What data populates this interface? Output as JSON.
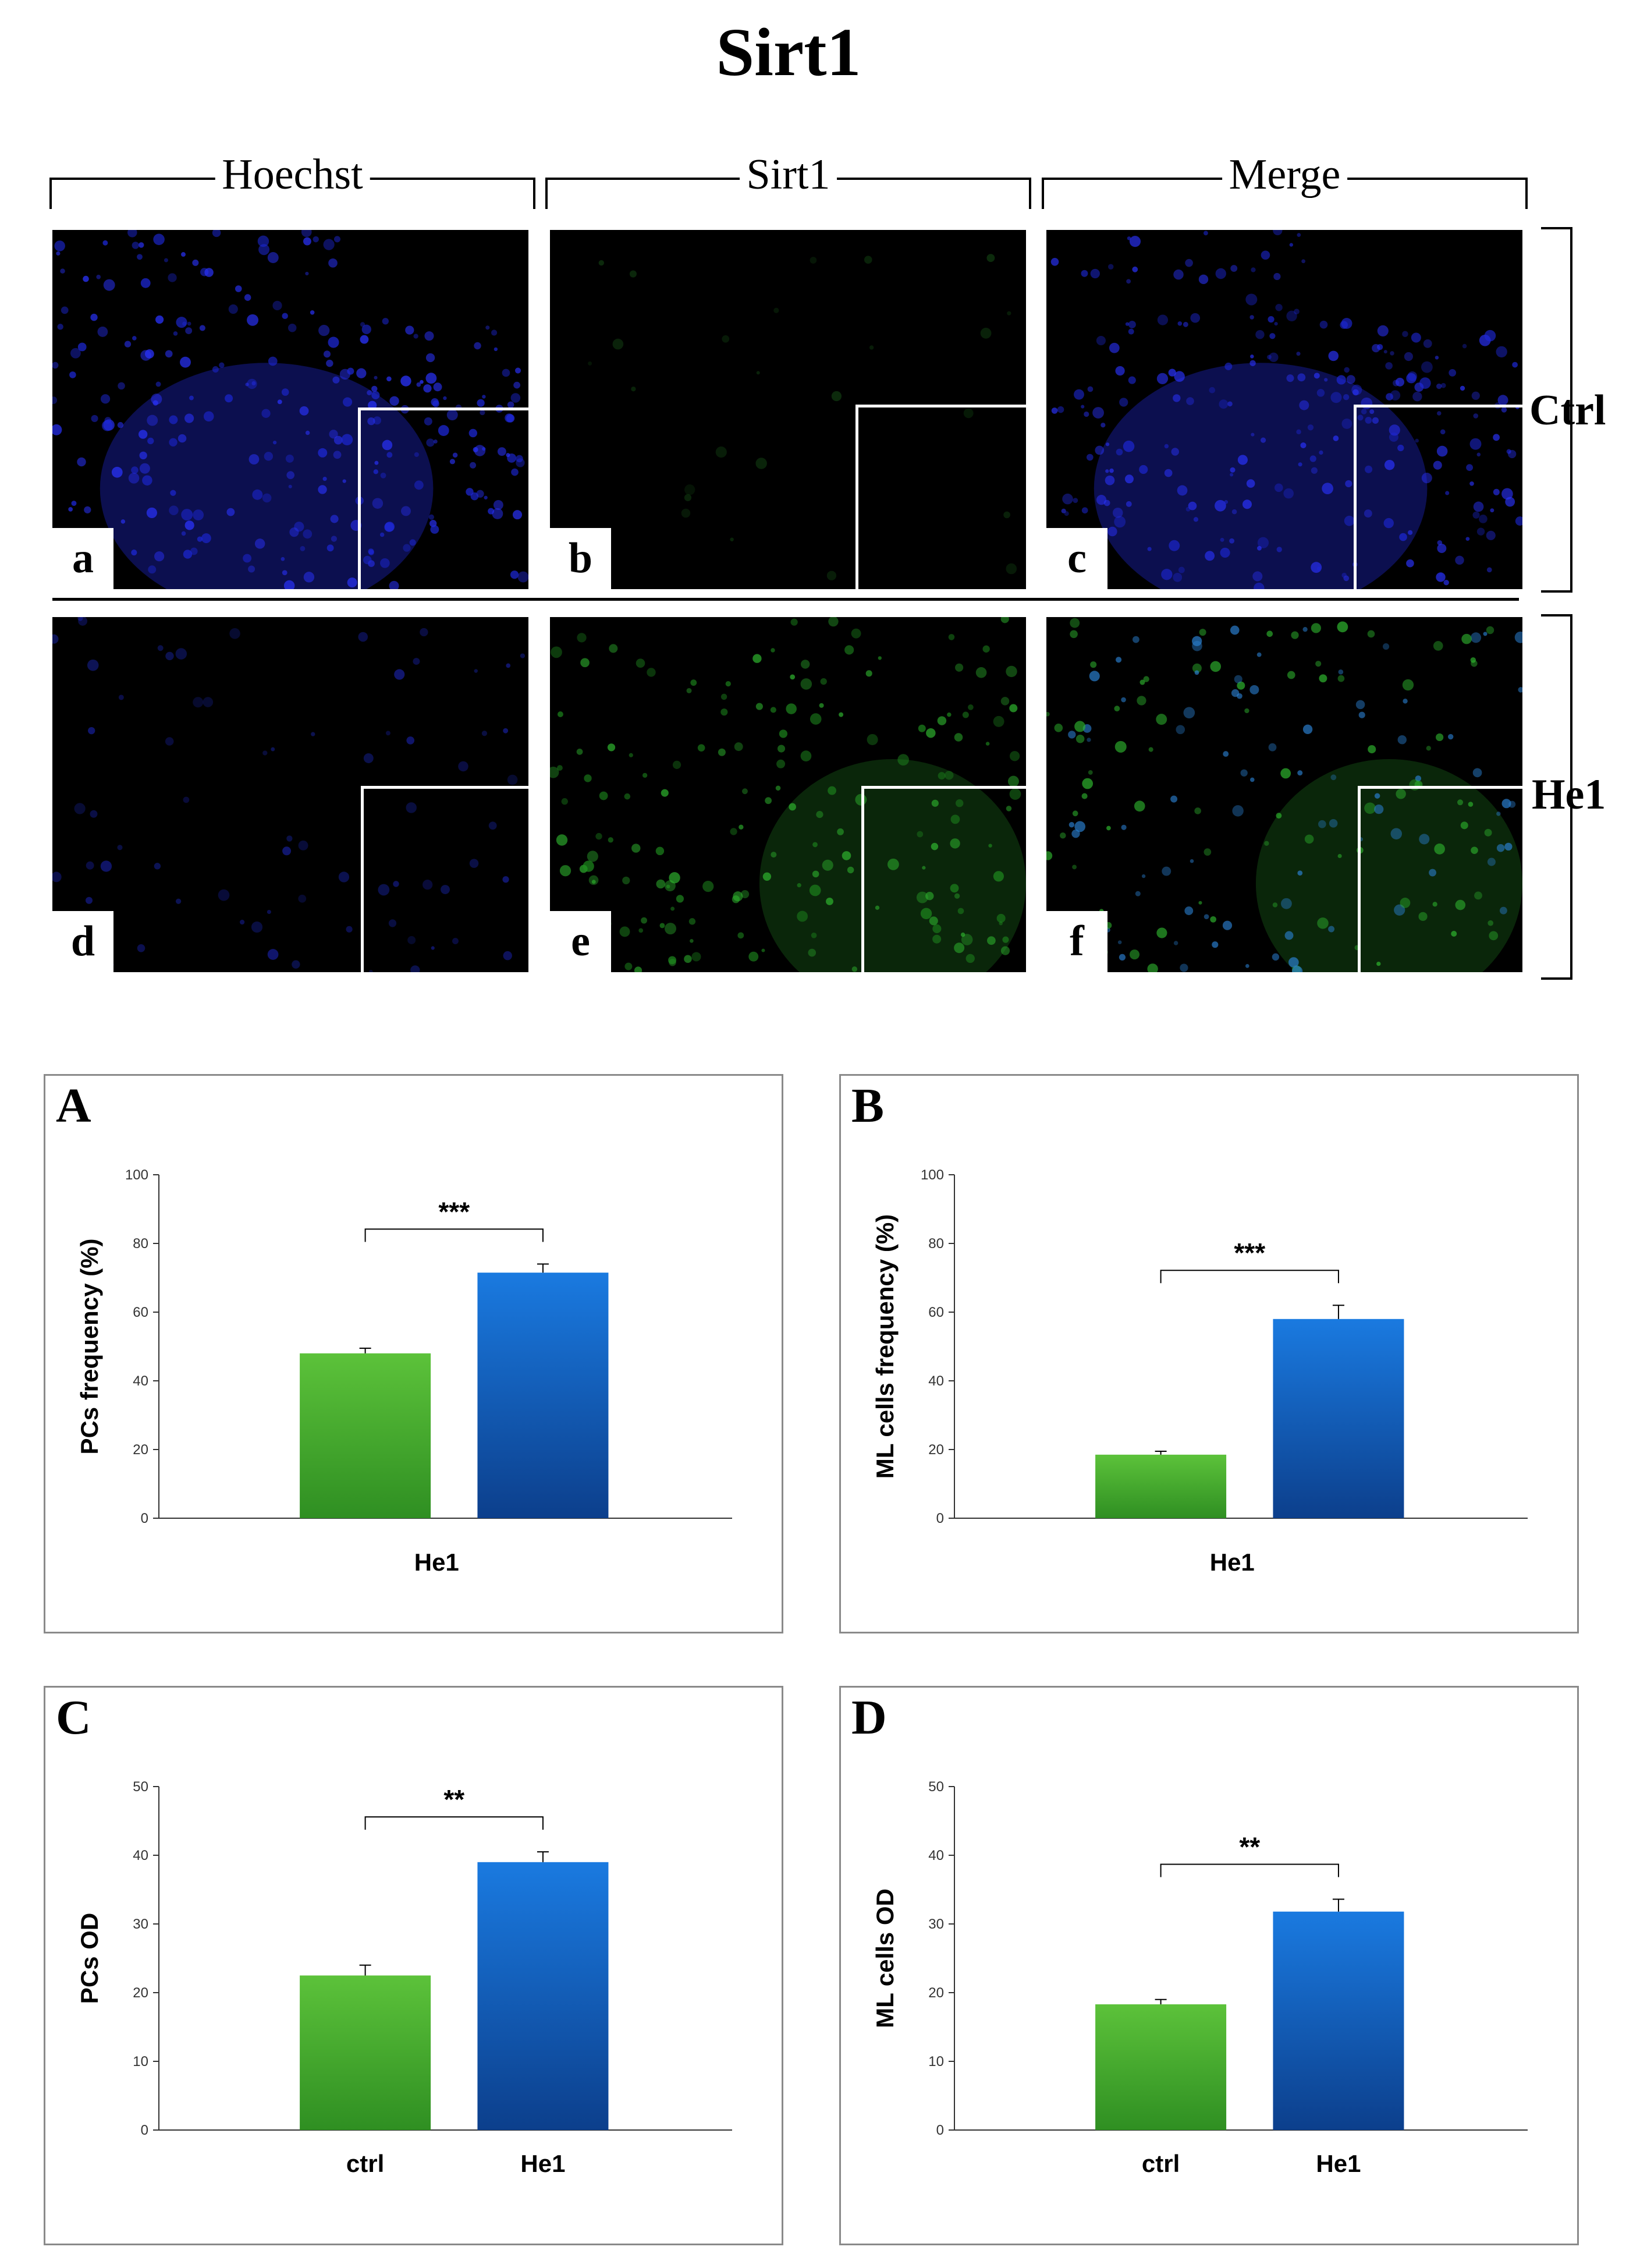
{
  "figure_title": "Sirt1",
  "columns": [
    "Hoechst",
    "Sirt1",
    "Merge"
  ],
  "rows": [
    "Ctrl",
    "He1"
  ],
  "micrographs": [
    {
      "label": "a",
      "channel": "blue"
    },
    {
      "label": "b",
      "channel": "green-faint"
    },
    {
      "label": "c",
      "channel": "merge-ctrl"
    },
    {
      "label": "d",
      "channel": "blue-faint"
    },
    {
      "label": "e",
      "channel": "green"
    },
    {
      "label": "f",
      "channel": "merge-he1"
    }
  ],
  "colors": {
    "ctrl_bar": "#43a82c",
    "he1_bar": "#1466c8",
    "frame": "#8a8a8a"
  },
  "chart_data": [
    {
      "panel": "A",
      "type": "bar",
      "categories": [
        "",
        ""
      ],
      "xlabel": "He1",
      "ylabel": "PCs frequency (%)",
      "ylim": [
        0,
        100
      ],
      "ticks": [
        0,
        20,
        40,
        60,
        80,
        100
      ],
      "values": [
        48,
        71.5
      ],
      "errors": [
        1.5,
        2.5
      ],
      "significance": "***"
    },
    {
      "panel": "B",
      "type": "bar",
      "categories": [
        "",
        ""
      ],
      "xlabel": "He1",
      "ylabel": "ML cells frequency (%)",
      "ylim": [
        0,
        100
      ],
      "ticks": [
        0,
        20,
        40,
        60,
        80,
        100
      ],
      "values": [
        18.5,
        58
      ],
      "errors": [
        1,
        4
      ],
      "significance": "***"
    },
    {
      "panel": "C",
      "type": "bar",
      "categories": [
        "ctrl",
        "He1"
      ],
      "xlabel": "",
      "ylabel": "PCs OD",
      "ylim": [
        0,
        50
      ],
      "ticks": [
        0,
        10,
        20,
        30,
        40,
        50
      ],
      "values": [
        22.5,
        39
      ],
      "errors": [
        1.5,
        1.5
      ],
      "significance": "**"
    },
    {
      "panel": "D",
      "type": "bar",
      "categories": [
        "ctrl",
        "He1"
      ],
      "xlabel": "",
      "ylabel": "ML cells OD",
      "ylim": [
        0,
        50
      ],
      "ticks": [
        0,
        10,
        20,
        30,
        40,
        50
      ],
      "values": [
        18.3,
        31.8
      ],
      "errors": [
        0.7,
        1.8
      ],
      "significance": "**"
    }
  ]
}
